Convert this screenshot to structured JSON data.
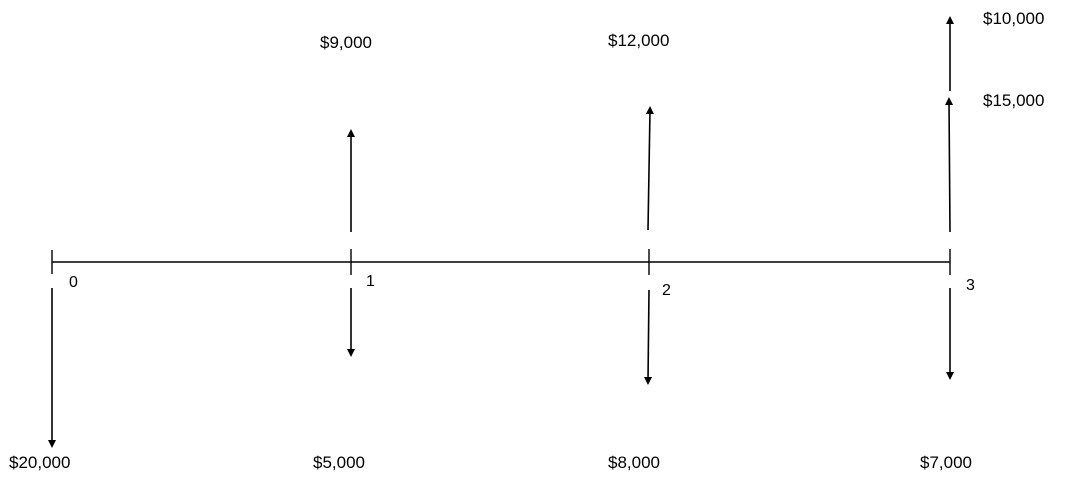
{
  "timeline": {
    "periods": [
      "0",
      "1",
      "2",
      "3"
    ]
  },
  "cash_flows": {
    "inflows": [
      {
        "period": "1",
        "amount": "$9,000"
      },
      {
        "period": "2",
        "amount": "$12,000"
      },
      {
        "period": "3",
        "amount": "$15,000"
      },
      {
        "period": "3",
        "amount": "$10,000"
      }
    ],
    "outflows": [
      {
        "period": "0",
        "amount": "$20,000"
      },
      {
        "period": "1",
        "amount": "$5,000"
      },
      {
        "period": "2",
        "amount": "$8,000"
      },
      {
        "period": "3",
        "amount": "$7,000"
      }
    ]
  },
  "colors": {
    "line": "#000000",
    "text": "#000000",
    "background": "#ffffff"
  }
}
